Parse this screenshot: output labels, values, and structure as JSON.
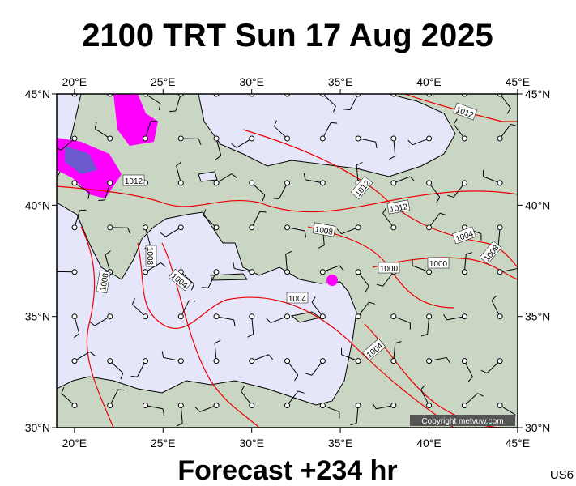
{
  "title": "2100 TRT Sun 17 Aug 2025",
  "footer": "Forecast +234 hr",
  "code": "US6",
  "copyright": "Copyright metvuw.com",
  "map": {
    "lon_ticks": [
      {
        "value": 20,
        "label": "20°E"
      },
      {
        "value": 25,
        "label": "25°E"
      },
      {
        "value": 30,
        "label": "30°E"
      },
      {
        "value": 35,
        "label": "35°E"
      },
      {
        "value": 40,
        "label": "40°E"
      },
      {
        "value": 45,
        "label": "45°E"
      }
    ],
    "lat_ticks": [
      {
        "value": 45,
        "label": "45°N"
      },
      {
        "value": 40,
        "label": "40°N"
      },
      {
        "value": 35,
        "label": "35°N"
      },
      {
        "value": 30,
        "label": "30°N"
      }
    ],
    "isobar_labels": [
      "1012",
      "1012",
      "1012",
      "1012",
      "1008",
      "1008",
      "1008",
      "1008",
      "1004",
      "1004",
      "1004",
      "1004",
      "1000",
      "1000"
    ]
  }
}
